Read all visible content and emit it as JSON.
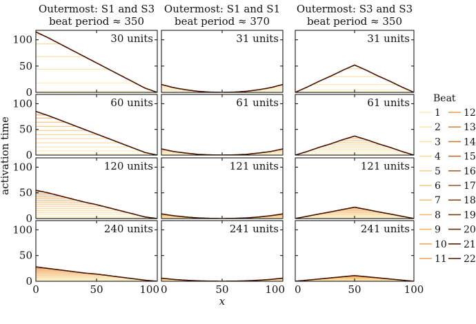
{
  "chart_data": {
    "type": "line",
    "xlabel": "x",
    "ylabel": "activation time",
    "xlim": [
      0,
      100
    ],
    "ylim": [
      0,
      118
    ],
    "xticks": [
      "0",
      "50",
      "100"
    ],
    "yticks": [
      "0",
      "50",
      "100"
    ],
    "x_samples": [
      0,
      10,
      20,
      30,
      40,
      50,
      60,
      70,
      80,
      90,
      100
    ],
    "columns": [
      {
        "title1": "Outermost: S1 and S3",
        "title2": "beat period ≈ 350"
      },
      {
        "title1": "Outermost: S1 and S1",
        "title2": "beat period ≈ 370"
      },
      {
        "title1": "Outermost: S3 and S3",
        "title2": "beat period ≈ 350"
      }
    ],
    "panels": [
      [
        {
          "label": "30 units",
          "final": [
            115,
            104,
            92,
            80,
            68,
            56,
            44,
            32,
            20,
            8,
            0
          ],
          "levels": [
            2,
            18,
            44,
            68,
            92,
            110,
            115
          ]
        },
        {
          "label": "60 units",
          "final": [
            85,
            77,
            68,
            59,
            50,
            41,
            32,
            23,
            14,
            5,
            0
          ],
          "levels": [
            2,
            8,
            16,
            24,
            32,
            40,
            48,
            56,
            64,
            72,
            78,
            85
          ]
        },
        {
          "label": "120 units",
          "final": [
            55,
            50,
            44,
            38,
            32,
            27,
            21,
            15,
            9,
            3,
            0
          ],
          "levels": [
            1,
            4,
            8,
            12,
            16,
            20,
            24,
            28,
            32,
            36,
            40,
            44,
            48,
            52,
            55
          ]
        },
        {
          "label": "240 units",
          "final": [
            28,
            25,
            22,
            19,
            16,
            14,
            11,
            8,
            5,
            2,
            0
          ],
          "levels": [
            1,
            3,
            5,
            7,
            9,
            11,
            13,
            15,
            17,
            19,
            21,
            23,
            25,
            27,
            28
          ]
        }
      ],
      [
        {
          "label": "31 units",
          "final": [
            15,
            9,
            5,
            2,
            0.5,
            0,
            0.5,
            2,
            5,
            9,
            15
          ],
          "levels": [
            1,
            3,
            6,
            9,
            12,
            15
          ]
        },
        {
          "label": "61 units",
          "final": [
            12,
            7,
            4,
            1.5,
            0.4,
            0,
            0.4,
            1.5,
            4,
            7,
            12
          ],
          "levels": [
            1,
            3,
            5,
            7,
            9,
            11,
            12
          ]
        },
        {
          "label": "121 units",
          "final": [
            9,
            5.5,
            3,
            1.2,
            0.3,
            0,
            0.3,
            1.2,
            3,
            5.5,
            9
          ],
          "levels": [
            1,
            2,
            3,
            4,
            5,
            6,
            7,
            8,
            9
          ]
        },
        {
          "label": "241 units",
          "final": [
            6,
            3.6,
            2,
            0.8,
            0.2,
            0,
            0.2,
            0.8,
            2,
            3.6,
            6
          ],
          "levels": [
            1,
            2,
            3,
            4,
            5,
            6
          ]
        }
      ],
      [
        {
          "label": "31 units",
          "final": [
            0,
            10,
            21,
            31,
            42,
            52,
            42,
            31,
            21,
            10,
            0
          ],
          "levels": [
            1,
            5,
            15,
            30,
            45,
            52
          ]
        },
        {
          "label": "61 units",
          "final": [
            0,
            7,
            15,
            22,
            30,
            37,
            30,
            22,
            15,
            7,
            0
          ],
          "levels": [
            1,
            4,
            8,
            12,
            16,
            20,
            24,
            28,
            32,
            37
          ]
        },
        {
          "label": "121 units",
          "final": [
            0,
            4.4,
            8.8,
            13,
            17.6,
            22,
            17.6,
            13,
            8.8,
            4.4,
            0
          ],
          "levels": [
            1,
            3,
            5,
            7,
            9,
            11,
            13,
            15,
            17,
            19,
            22
          ]
        },
        {
          "label": "241 units",
          "final": [
            0,
            2.2,
            4.4,
            6.6,
            8.8,
            11,
            8.8,
            6.6,
            4.4,
            2.2,
            0
          ],
          "levels": [
            1,
            2,
            3,
            4,
            5,
            6,
            7,
            8,
            9,
            10,
            11
          ]
        }
      ]
    ],
    "legend": {
      "title": "Beat",
      "placement": "right",
      "entries": [
        "1",
        "2",
        "3",
        "4",
        "5",
        "6",
        "7",
        "8",
        "9",
        "10",
        "11",
        "12",
        "13",
        "14",
        "15",
        "16",
        "17",
        "18",
        "19",
        "20",
        "21",
        "22"
      ],
      "color_start": "#fdeeb8",
      "color_mid": "#f0a050",
      "color_end": "#4a1400"
    }
  }
}
